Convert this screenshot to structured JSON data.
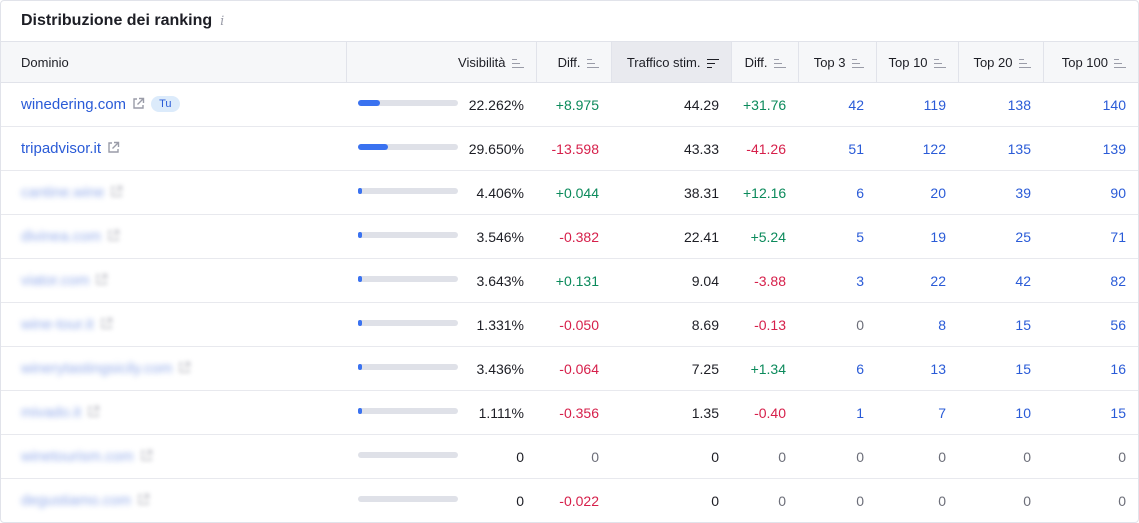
{
  "widget": {
    "title": "Distribuzione dei ranking",
    "info_icon": "i"
  },
  "columns": {
    "domain": "Dominio",
    "visibility": "Visibilità",
    "diff1": "Diff.",
    "traffic": "Traffico stim.",
    "diff2": "Diff.",
    "top3": "Top 3",
    "top10": "Top 10",
    "top20": "Top 20",
    "top100": "Top 100"
  },
  "colors": {
    "link": "#2a5bd7",
    "positive": "#0b8a5b",
    "negative": "#d61f4a",
    "bar": "#3a72f0",
    "bar_track": "#dfe1e8"
  },
  "rows": [
    {
      "domain": "winedering.com",
      "badge": "Tu",
      "blurred": false,
      "vis_pct": "22.262%",
      "vis_fill": 0.222,
      "diff1": "+8.975",
      "diff1_sign": "pos",
      "traffic": "44.29",
      "diff2": "+31.76",
      "diff2_sign": "pos",
      "top3": "42",
      "top10": "119",
      "top20": "138",
      "top100": "140"
    },
    {
      "domain": "tripadvisor.it",
      "badge": "",
      "blurred": false,
      "vis_pct": "29.650%",
      "vis_fill": 0.296,
      "diff1": "-13.598",
      "diff1_sign": "neg",
      "traffic": "43.33",
      "diff2": "-41.26",
      "diff2_sign": "neg",
      "top3": "51",
      "top10": "122",
      "top20": "135",
      "top100": "139"
    },
    {
      "domain": "cantine.wine",
      "badge": "",
      "blurred": true,
      "vis_pct": "4.406%",
      "vis_fill": 0.044,
      "diff1": "+0.044",
      "diff1_sign": "pos",
      "traffic": "38.31",
      "diff2": "+12.16",
      "diff2_sign": "pos",
      "top3": "6",
      "top10": "20",
      "top20": "39",
      "top100": "90"
    },
    {
      "domain": "divinea.com",
      "badge": "",
      "blurred": true,
      "vis_pct": "3.546%",
      "vis_fill": 0.035,
      "diff1": "-0.382",
      "diff1_sign": "neg",
      "traffic": "22.41",
      "diff2": "+5.24",
      "diff2_sign": "pos",
      "top3": "5",
      "top10": "19",
      "top20": "25",
      "top100": "71"
    },
    {
      "domain": "viator.com",
      "badge": "",
      "blurred": true,
      "vis_pct": "3.643%",
      "vis_fill": 0.036,
      "diff1": "+0.131",
      "diff1_sign": "pos",
      "traffic": "9.04",
      "diff2": "-3.88",
      "diff2_sign": "neg",
      "top3": "3",
      "top10": "22",
      "top20": "42",
      "top100": "82"
    },
    {
      "domain": "wine-tour.it",
      "badge": "",
      "blurred": true,
      "vis_pct": "1.331%",
      "vis_fill": 0.013,
      "diff1": "-0.050",
      "diff1_sign": "neg",
      "traffic": "8.69",
      "diff2": "-0.13",
      "diff2_sign": "neg",
      "top3": "0",
      "top10": "8",
      "top20": "15",
      "top100": "56"
    },
    {
      "domain": "winerytastingsicily.com",
      "badge": "",
      "blurred": true,
      "vis_pct": "3.436%",
      "vis_fill": 0.034,
      "diff1": "-0.064",
      "diff1_sign": "neg",
      "traffic": "7.25",
      "diff2": "+1.34",
      "diff2_sign": "pos",
      "top3": "6",
      "top10": "13",
      "top20": "15",
      "top100": "16"
    },
    {
      "domain": "mivado.it",
      "badge": "",
      "blurred": true,
      "vis_pct": "1.111%",
      "vis_fill": 0.011,
      "diff1": "-0.356",
      "diff1_sign": "neg",
      "traffic": "1.35",
      "diff2": "-0.40",
      "diff2_sign": "neg",
      "top3": "1",
      "top10": "7",
      "top20": "10",
      "top100": "15"
    },
    {
      "domain": "winetourism.com",
      "badge": "",
      "blurred": true,
      "vis_pct": "0",
      "vis_fill": 0,
      "diff1": "0",
      "diff1_sign": "zero",
      "traffic": "0",
      "diff2": "0",
      "diff2_sign": "zero",
      "top3": "0",
      "top10": "0",
      "top20": "0",
      "top100": "0"
    },
    {
      "domain": "degustiamo.com",
      "badge": "",
      "blurred": true,
      "vis_pct": "0",
      "vis_fill": 0,
      "diff1": "-0.022",
      "diff1_sign": "neg",
      "traffic": "0",
      "diff2": "0",
      "diff2_sign": "zero",
      "top3": "0",
      "top10": "0",
      "top20": "0",
      "top100": "0"
    }
  ]
}
